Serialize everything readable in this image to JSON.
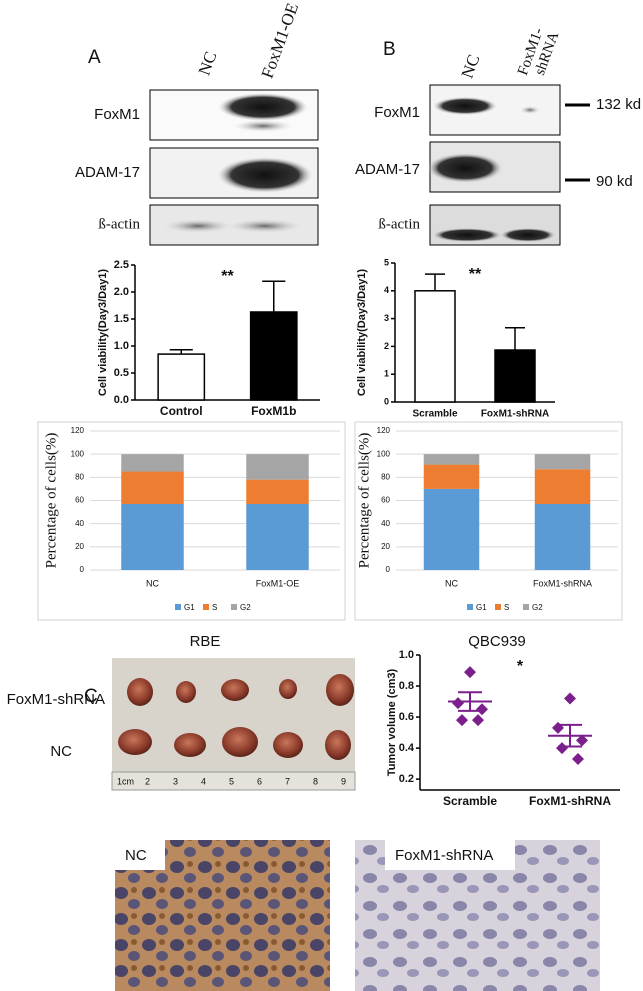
{
  "panels": {
    "a": "A",
    "b": "B",
    "c": "C"
  },
  "blot_a": {
    "columns": [
      "NC",
      "FoxM1-OE"
    ],
    "rows": [
      "FoxM1",
      "ADAM-17",
      "ß-actin"
    ]
  },
  "blot_b": {
    "columns": [
      "NC",
      "FoxM1-",
      "shRNA"
    ],
    "rows": [
      "FoxM1",
      "ADAM-17",
      "ß-actin"
    ],
    "markers": [
      "132 kd",
      "90 kd"
    ]
  },
  "photo": {
    "rows": [
      "FoxM1-shRNA",
      "NC"
    ],
    "ruler": [
      "1cm",
      "2",
      "3",
      "4",
      "5",
      "6",
      "7",
      "8",
      "9"
    ]
  },
  "histology": {
    "labels": [
      "NC",
      "FoxM1-shRNA"
    ]
  },
  "chart_data": [
    {
      "type": "bar",
      "ylabel": "Cell viability(Day3/Day1)",
      "categories": [
        "Control",
        "FoxM1b"
      ],
      "values": [
        0.85,
        1.63
      ],
      "errors": [
        0.08,
        0.57
      ],
      "colors": [
        "#ffffff",
        "#000000"
      ],
      "annotation": "**",
      "ylim": [
        0,
        2.5
      ],
      "yticks": [
        {
          "value": 0,
          "label": "0.0"
        },
        {
          "value": 0.5,
          "label": "0.5"
        },
        {
          "value": 1,
          "label": "1.0"
        },
        {
          "value": 1.5,
          "label": "1.5"
        },
        {
          "value": 2,
          "label": "2.0"
        },
        {
          "value": 2.5,
          "label": "2.5"
        }
      ]
    },
    {
      "type": "bar",
      "ylabel": "Cell viability(Day3/Day1)",
      "categories": [
        "Scramble",
        "FoxM1-shRNA"
      ],
      "values": [
        4.0,
        1.87
      ],
      "errors": [
        0.6,
        0.8
      ],
      "colors": [
        "#ffffff",
        "#000000"
      ],
      "annotation": "**",
      "ylim": [
        0,
        5
      ],
      "yticks": [
        0,
        1,
        2,
        3,
        4,
        5
      ]
    },
    {
      "type": "stacked",
      "ylabel": "Percentage of cells(%)",
      "caption": "RBE",
      "categories": [
        "NC",
        "FoxM1-OE"
      ],
      "series": [
        {
          "name": "G1",
          "color": "#5b9bd5",
          "values": [
            57,
            57
          ]
        },
        {
          "name": "S",
          "color": "#ed7d31",
          "values": [
            28,
            21
          ]
        },
        {
          "name": "G2",
          "color": "#a5a5a5",
          "values": [
            15,
            22
          ]
        }
      ],
      "ylim": [
        0,
        120
      ],
      "yticks": [
        0,
        20,
        40,
        60,
        80,
        100,
        120
      ],
      "grid": true
    },
    {
      "type": "stacked",
      "ylabel": "Percentage of cells(%)",
      "caption": "QBC939",
      "categories": [
        "NC",
        "FoxM1-shRNA"
      ],
      "series": [
        {
          "name": "G1",
          "color": "#5b9bd5",
          "values": [
            70,
            57
          ]
        },
        {
          "name": "S",
          "color": "#ed7d31",
          "values": [
            21,
            30
          ]
        },
        {
          "name": "G2",
          "color": "#a5a5a5",
          "values": [
            9,
            13
          ]
        }
      ],
      "ylim": [
        0,
        120
      ],
      "yticks": [
        0,
        20,
        40,
        60,
        80,
        100,
        120
      ],
      "grid": true
    },
    {
      "type": "dot",
      "ylabel": "Tumor volume (cm3)",
      "categories": [
        "Scramble",
        "FoxM1-shRNA"
      ],
      "color": "#7b1f8c",
      "annotation": "*",
      "groups": [
        {
          "values": [
            0.89,
            0.69,
            0.65,
            0.58,
            0.58
          ],
          "mean": 0.7,
          "sem": 0.06
        },
        {
          "values": [
            0.72,
            0.53,
            0.45,
            0.4,
            0.33
          ],
          "mean": 0.48,
          "sem": 0.07
        }
      ],
      "ylim": [
        0.13,
        1.0
      ],
      "yticks": [
        0.2,
        0.4,
        0.6,
        0.8,
        {
          "value": 1.0,
          "label": "1.0"
        }
      ]
    }
  ]
}
